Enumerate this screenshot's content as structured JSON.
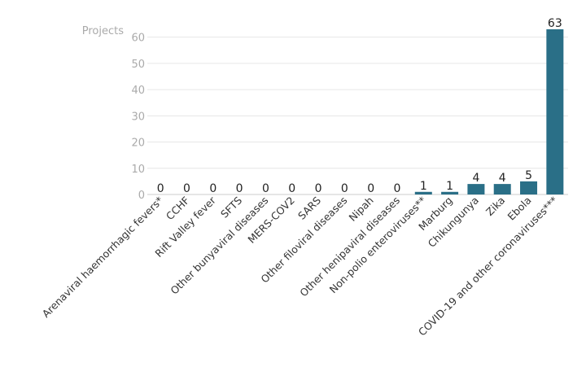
{
  "chart_data": {
    "type": "bar",
    "ylabel": "Projects",
    "categories": [
      "Arenaviral haemorrhagic fevers*",
      "CCHF",
      "Rift Valley fever",
      "SFTS",
      "Other bunyaviral diseases",
      "MERS-COV2",
      "SARS",
      "Other filoviral diseases",
      "Nipah",
      "Other henipaviral diseases",
      "Non-polio enteroviruses**",
      "Marburg",
      "Chikungunya",
      "Zika",
      "Ebola",
      "COVID-19 and other coronaviruses***"
    ],
    "values": [
      0,
      0,
      0,
      0,
      0,
      0,
      0,
      0,
      0,
      0,
      1,
      1,
      4,
      4,
      5,
      63
    ],
    "ylim": [
      0,
      63
    ],
    "yticks": [
      0,
      10,
      20,
      30,
      40,
      50,
      60
    ],
    "grid": true,
    "bar_color": "#2a6f87"
  }
}
